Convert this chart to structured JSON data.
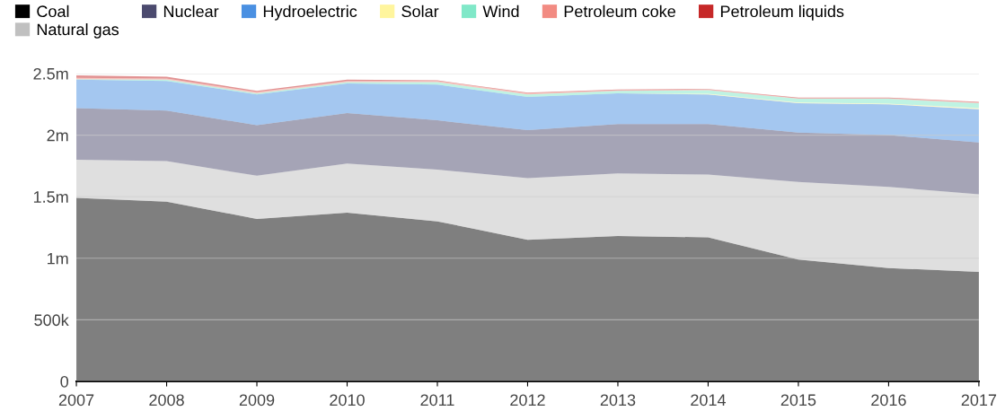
{
  "chart_data": {
    "type": "area",
    "stacked": true,
    "x": [
      2007,
      2008,
      2009,
      2010,
      2011,
      2012,
      2013,
      2014,
      2015,
      2016,
      2017
    ],
    "series": [
      {
        "name": "Coal",
        "color": "#000000",
        "values": [
          1490000,
          1460000,
          1320000,
          1370000,
          1300000,
          1150000,
          1180000,
          1170000,
          990000,
          920000,
          890000
        ]
      },
      {
        "name": "Natural gas",
        "color": "#c0c0c0",
        "values": [
          310000,
          330000,
          350000,
          400000,
          420000,
          500000,
          510000,
          510000,
          630000,
          660000,
          630000
        ]
      },
      {
        "name": "Nuclear",
        "color": "#4b4a6e",
        "values": [
          420000,
          410000,
          410000,
          410000,
          400000,
          390000,
          400000,
          410000,
          400000,
          420000,
          420000
        ]
      },
      {
        "name": "Hydroelectric",
        "color": "#4a90e2",
        "values": [
          230000,
          240000,
          250000,
          240000,
          290000,
          270000,
          250000,
          240000,
          240000,
          250000,
          270000
        ]
      },
      {
        "name": "Solar",
        "color": "#fff59d",
        "values": [
          0,
          0,
          0,
          0,
          0,
          0,
          0,
          5000,
          5000,
          5000,
          10000
        ]
      },
      {
        "name": "Wind",
        "color": "#80e8c8",
        "values": [
          5000,
          10000,
          10000,
          10000,
          20000,
          20000,
          20000,
          30000,
          30000,
          40000,
          40000
        ]
      },
      {
        "name": "Petroleum coke",
        "color": "#f28b82",
        "values": [
          10000,
          10000,
          10000,
          10000,
          10000,
          10000,
          5000,
          5000,
          5000,
          5000,
          5000
        ]
      },
      {
        "name": "Petroleum liquids",
        "color": "#c62828",
        "values": [
          20000,
          15000,
          10000,
          10000,
          5000,
          5000,
          5000,
          5000,
          5000,
          5000,
          5000
        ]
      }
    ],
    "xlim": [
      2007,
      2017
    ],
    "xticks": [
      2007,
      2008,
      2009,
      2010,
      2011,
      2012,
      2013,
      2014,
      2015,
      2016,
      2017
    ],
    "ylim": [
      0,
      2500000
    ],
    "yticks": [
      {
        "value": 0,
        "label": "0"
      },
      {
        "value": 500000,
        "label": "500k"
      },
      {
        "value": 1000000,
        "label": "1m"
      },
      {
        "value": 1500000,
        "label": "1.5m"
      },
      {
        "value": 2000000,
        "label": "2m"
      },
      {
        "value": 2500000,
        "label": "2.5m"
      }
    ],
    "grid": "y",
    "legend": "top"
  }
}
